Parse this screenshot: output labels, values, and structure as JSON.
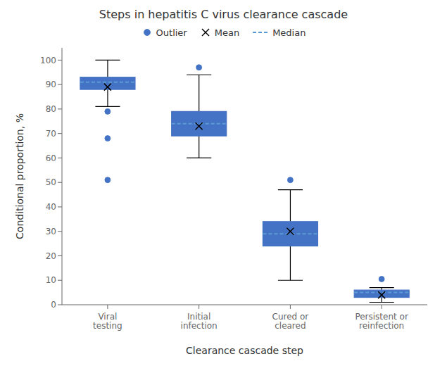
{
  "chart_data": {
    "type": "box",
    "title": "Steps in hepatitis C virus clearance cascade",
    "xlabel": "Clearance cascade step",
    "ylabel": "Conditional proportion, %",
    "categories": [
      "Viral\ntesting",
      "Initial\ninfection",
      "Cured or\ncleared",
      "Persistent or\nreinfection"
    ],
    "boxes": [
      {
        "q1": 88,
        "median": 91,
        "q3": 93,
        "whisker_low": 81,
        "whisker_high": 100,
        "mean": 89,
        "outliers": [
          79,
          68,
          51
        ]
      },
      {
        "q1": 69,
        "median": 74,
        "q3": 79,
        "whisker_low": 60,
        "whisker_high": 94,
        "mean": 73,
        "outliers": [
          97
        ]
      },
      {
        "q1": 24,
        "median": 29,
        "q3": 34,
        "whisker_low": 10,
        "whisker_high": 47,
        "mean": 30,
        "outliers": [
          51
        ]
      },
      {
        "q1": 3,
        "median": 5,
        "q3": 6,
        "whisker_low": 1,
        "whisker_high": 7,
        "mean": 4,
        "outliers": [
          10.5
        ]
      }
    ],
    "color": "#4472C4",
    "series": [
      {
        "name": "Outlier",
        "color": "#4472C4",
        "marker": "circle"
      },
      {
        "name": "Mean",
        "color": "black",
        "marker": "x"
      },
      {
        "name": "Median",
        "color": "#5B9BD5",
        "line_style": "dashed"
      }
    ],
    "ylim": [
      0,
      105
    ],
    "yticks": [
      0,
      10,
      20,
      30,
      40,
      50,
      60,
      70,
      80,
      90,
      100
    ],
    "grid": false
  }
}
